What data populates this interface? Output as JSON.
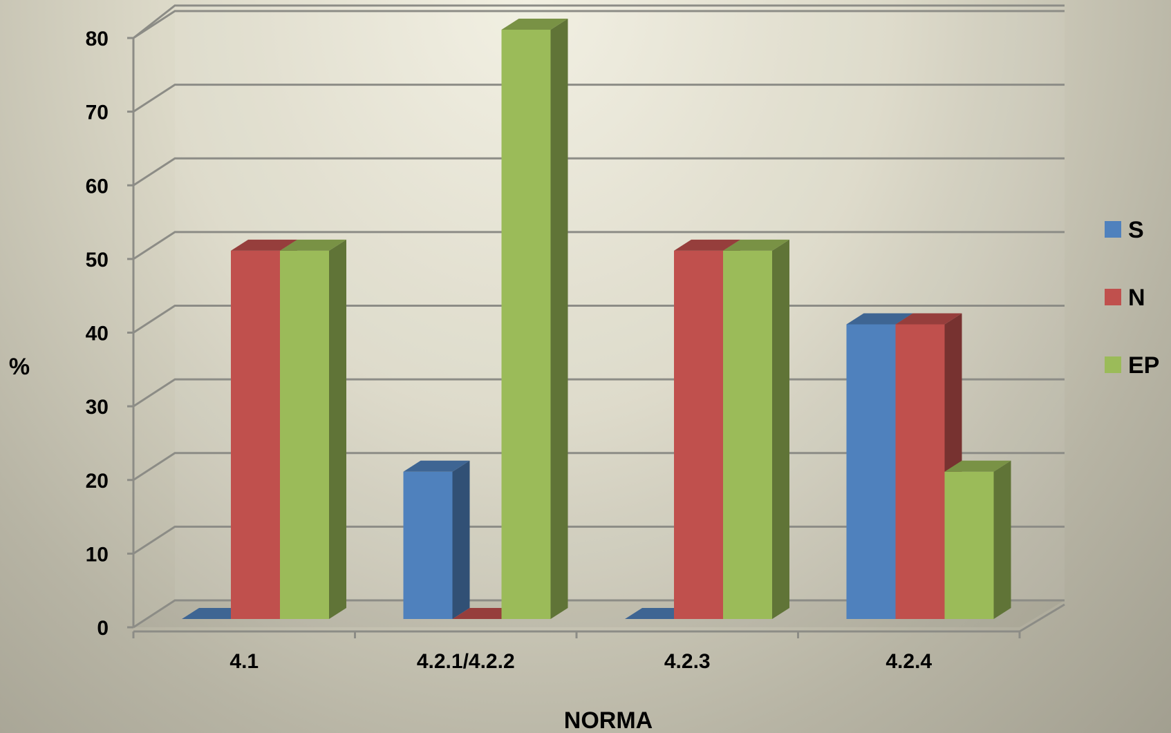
{
  "chart_data": {
    "type": "bar",
    "xlabel": "NORMA",
    "ylabel": "%",
    "ylim": [
      0,
      80
    ],
    "yticks": [
      0,
      10,
      20,
      30,
      40,
      50,
      60,
      70,
      80
    ],
    "categories": [
      "4.1",
      "4.2.1/4.2.2",
      "4.2.3",
      "4.2.4"
    ],
    "series": [
      {
        "name": "S",
        "values": [
          0,
          20,
          0,
          40
        ],
        "color": "#4f81bd"
      },
      {
        "name": "N",
        "values": [
          50,
          0,
          50,
          40
        ],
        "color": "#c0504d"
      },
      {
        "name": "EP",
        "values": [
          50,
          80,
          50,
          20
        ],
        "color": "#9bbb59"
      }
    ],
    "grid": true,
    "legend_position": "right",
    "style": "3d-clustered-column"
  }
}
